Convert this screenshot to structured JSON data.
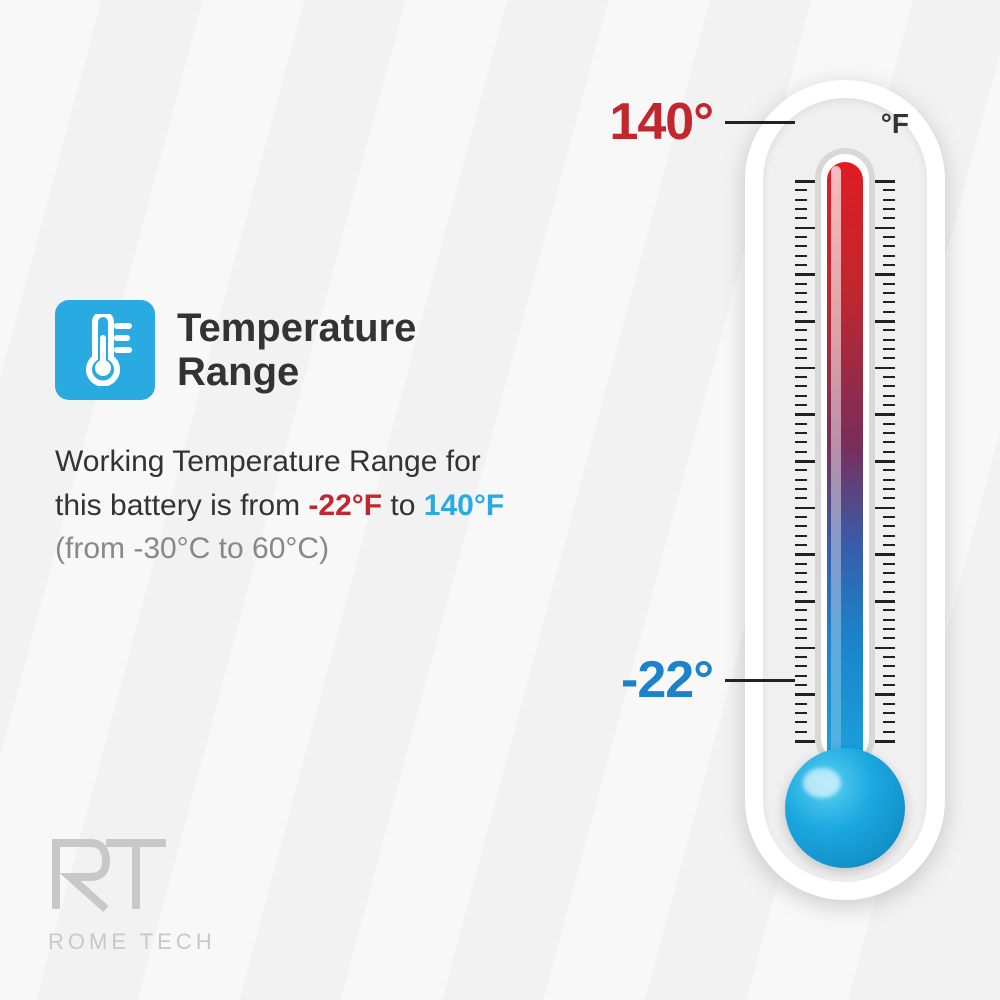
{
  "title": "Temperature\nRange",
  "icon": {
    "name": "thermometer-icon",
    "bg_color": "#29abe2"
  },
  "description": {
    "prefix": "Working Temperature Range for this battery is from ",
    "low": "-22°F",
    "mid": " to ",
    "high": "140°F",
    "sub": "(from -30°C to 60°C)"
  },
  "thermometer": {
    "unit": "°F",
    "high_label": "140°",
    "low_label": "-22°",
    "colors": {
      "hot": "#c1272d",
      "cold": "#1ca8e0",
      "body": "#ffffff",
      "tube_bg": "#d8d8d8"
    },
    "tick_major_count": 12,
    "tick_minor_per_major": 4
  },
  "logo": {
    "mark": "RT",
    "text": "ROME TECH",
    "color": "#c8c8c8"
  },
  "colors": {
    "text": "#333333",
    "text_muted": "#888888",
    "accent_blue": "#29abe2",
    "accent_red": "#c1272d",
    "background": "#f5f5f5"
  }
}
